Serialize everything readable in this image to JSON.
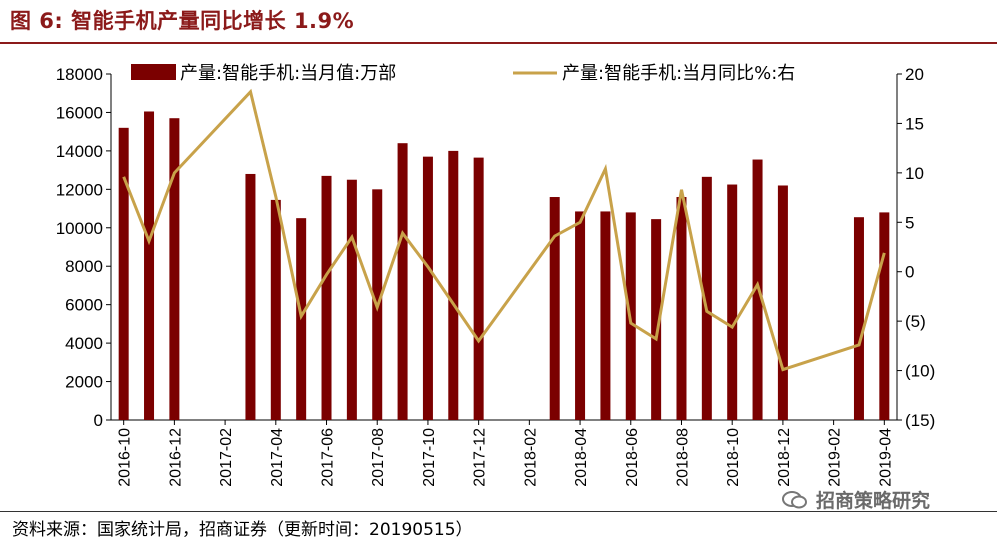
{
  "title": "图 6:  智能手机产量同比增长 1.9%",
  "source": "资料来源：国家统计局，招商证券（更新时间：20190515）",
  "watermark": "招商策略研究",
  "colors": {
    "bar": "#7b0000",
    "line": "#c8a24a",
    "title": "#8b1a1a",
    "negative_tick": "#e60000"
  },
  "chart_data": {
    "type": "bar+line",
    "categories": [
      "2016-10",
      "2016-11",
      "2016-12",
      "2017-01",
      "2017-02",
      "2017-03",
      "2017-04",
      "2017-05",
      "2017-06",
      "2017-07",
      "2017-08",
      "2017-09",
      "2017-10",
      "2017-11",
      "2017-12",
      "2018-01",
      "2018-02",
      "2018-03",
      "2018-04",
      "2018-05",
      "2018-06",
      "2018-07",
      "2018-08",
      "2018-09",
      "2018-10",
      "2018-11",
      "2018-12",
      "2019-01",
      "2019-02",
      "2019-03",
      "2019-04"
    ],
    "x_tick_labels": [
      "2016-10",
      "2016-12",
      "2017-02",
      "2017-04",
      "2017-06",
      "2017-08",
      "2017-10",
      "2017-12",
      "2018-02",
      "2018-04",
      "2018-06",
      "2018-08",
      "2018-10",
      "2018-12",
      "2019-02",
      "2019-04"
    ],
    "series": [
      {
        "name": "产量:智能手机:当月值:万部",
        "type": "bar",
        "axis": "left",
        "values": [
          15200,
          16050,
          15700,
          null,
          null,
          12800,
          11450,
          10500,
          12700,
          12500,
          12000,
          14400,
          13700,
          14000,
          13650,
          null,
          null,
          11600,
          10850,
          10850,
          10800,
          10450,
          11600,
          12650,
          12250,
          13550,
          12200,
          null,
          null,
          10550,
          10800
        ]
      },
      {
        "name": "产量:智能手机:当月同比%:右",
        "type": "line",
        "axis": "right",
        "values": [
          9.6,
          3.1,
          10.0,
          null,
          null,
          18.2,
          7.6,
          -4.5,
          -0.3,
          3.5,
          -3.6,
          3.9,
          0.5,
          null,
          -7.0,
          null,
          null,
          3.6,
          5.0,
          10.4,
          -5.2,
          -6.8,
          8.3,
          -4.0,
          -5.6,
          -1.3,
          -9.9,
          null,
          null,
          -7.4,
          1.9
        ]
      }
    ],
    "y_left": {
      "min": 0,
      "max": 18000,
      "ticks": [
        "0",
        "2000",
        "4000",
        "6000",
        "8000",
        "10000",
        "12000",
        "14000",
        "16000",
        "18000"
      ]
    },
    "y_right": {
      "min": -15,
      "max": 20,
      "ticks": [
        "(15)",
        "(10)",
        "(5)",
        "0",
        "5",
        "10",
        "15",
        "20"
      ]
    },
    "legend_position": "top"
  }
}
